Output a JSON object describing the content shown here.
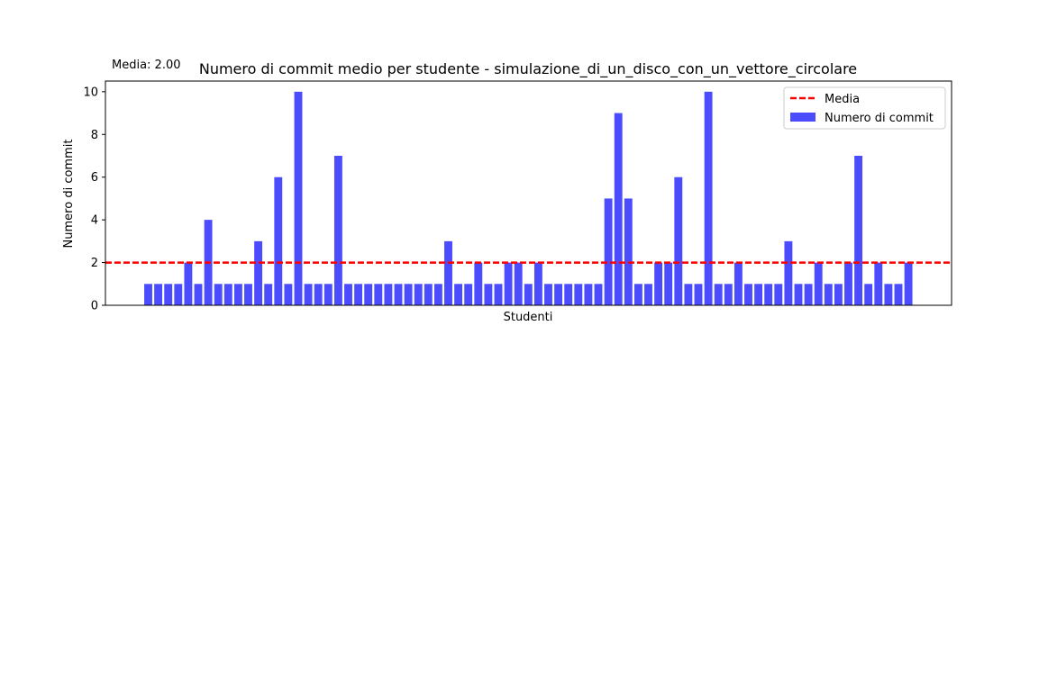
{
  "chart_data": {
    "type": "bar",
    "title": "Numero di commit medio per studente - simulazione_di_un_disco_con_un_vettore_circolare",
    "annotation": "Media: 2.00",
    "xlabel": "Studenti",
    "ylabel": "Numero di commit",
    "ylim": [
      0,
      10.5
    ],
    "yticks": [
      0,
      2,
      4,
      6,
      8,
      10
    ],
    "grid": false,
    "legend_position": "top-right",
    "mean": 2,
    "series": [
      {
        "name": "Numero di commit",
        "color": "#4c4cff",
        "values": [
          1,
          1,
          1,
          1,
          2,
          1,
          4,
          1,
          1,
          1,
          1,
          3,
          1,
          6,
          1,
          10,
          1,
          1,
          1,
          7,
          1,
          1,
          1,
          1,
          1,
          1,
          1,
          1,
          1,
          1,
          3,
          1,
          1,
          2,
          1,
          1,
          2,
          2,
          1,
          2,
          1,
          1,
          1,
          1,
          1,
          1,
          5,
          9,
          5,
          1,
          1,
          2,
          2,
          6,
          1,
          1,
          10,
          1,
          1,
          2,
          1,
          1,
          1,
          1,
          3,
          1,
          1,
          2,
          1,
          1,
          2,
          7,
          1,
          2,
          1,
          1,
          2
        ]
      }
    ],
    "legend": [
      {
        "label": "Media",
        "color": "#ff0000",
        "style": "dashed-line"
      },
      {
        "label": "Numero di commit",
        "color": "#4c4cff",
        "style": "bar"
      }
    ]
  }
}
